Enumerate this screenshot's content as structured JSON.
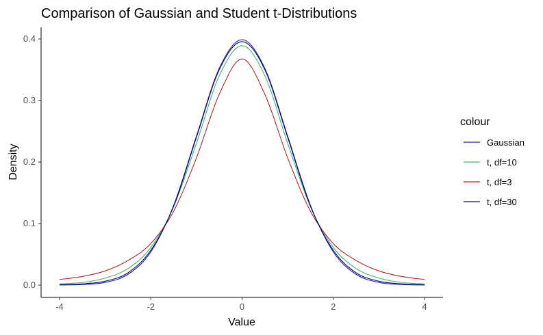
{
  "chart_data": {
    "type": "line",
    "title": "Comparison of Gaussian and Student t-Distributions",
    "xlabel": "Value",
    "ylabel": "Density",
    "xlim": [
      -4,
      4
    ],
    "ylim": [
      0,
      0.4
    ],
    "x_ticks": [
      "-4",
      "-2",
      "0",
      "2",
      "4"
    ],
    "y_ticks": [
      "0.0",
      "0.1",
      "0.2",
      "0.3",
      "0.4"
    ],
    "grid": false,
    "legend": {
      "title": "colour",
      "position": "right"
    },
    "x": [
      -4.0,
      -3.5,
      -3.0,
      -2.5,
      -2.0,
      -1.5,
      -1.0,
      -0.5,
      0.0,
      0.5,
      1.0,
      1.5,
      2.0,
      2.5,
      3.0,
      3.5,
      4.0
    ],
    "series": [
      {
        "name": "Gaussian",
        "color": "#1a1aa6",
        "values": [
          0.0001,
          0.0009,
          0.0044,
          0.0175,
          0.054,
          0.1295,
          0.242,
          0.3521,
          0.3989,
          0.3521,
          0.242,
          0.1295,
          0.054,
          0.0175,
          0.0044,
          0.0009,
          0.0001
        ]
      },
      {
        "name": "t, df=10",
        "color": "#3cb371",
        "values": [
          0.002,
          0.0043,
          0.0114,
          0.0269,
          0.0611,
          0.1274,
          0.2304,
          0.3402,
          0.3891,
          0.3402,
          0.2304,
          0.1274,
          0.0611,
          0.0269,
          0.0114,
          0.0043,
          0.002
        ]
      },
      {
        "name": "t, df=3",
        "color": "#b22222",
        "values": [
          0.0092,
          0.014,
          0.023,
          0.04,
          0.0675,
          0.12,
          0.2067,
          0.31,
          0.3676,
          0.31,
          0.2067,
          0.12,
          0.0675,
          0.04,
          0.023,
          0.014,
          0.0092
        ]
      },
      {
        "name": "t, df=30",
        "color": "#0a0a6b",
        "values": [
          0.0005,
          0.002,
          0.0063,
          0.02,
          0.0566,
          0.128,
          0.24,
          0.35,
          0.3956,
          0.35,
          0.24,
          0.128,
          0.0566,
          0.02,
          0.0063,
          0.002,
          0.0005
        ]
      }
    ]
  }
}
